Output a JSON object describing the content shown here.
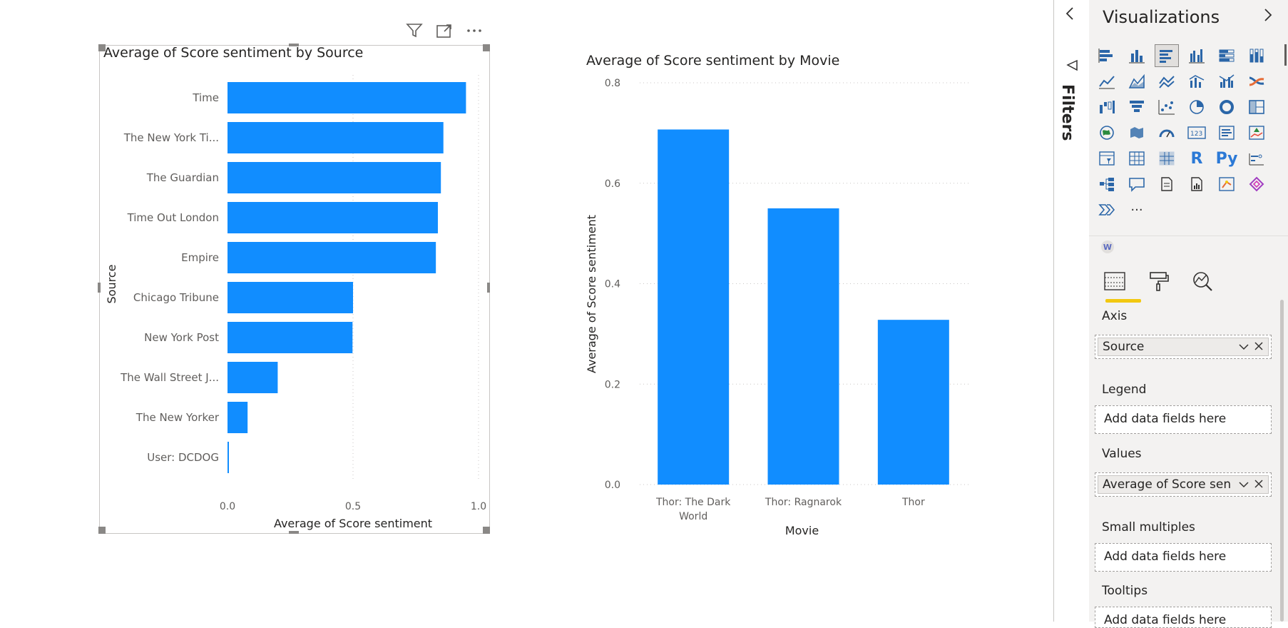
{
  "canvas": {
    "visual_header_icons": [
      "filter-icon",
      "focus-mode-icon",
      "more-options-icon"
    ],
    "bar_chart": {
      "title": "Average of Score sentiment by Source"
    },
    "column_chart": {
      "title": "Average of Score sentiment by Movie"
    }
  },
  "chart_data": [
    {
      "type": "bar",
      "orientation": "horizontal",
      "title": "Average of Score sentiment by Source",
      "xlabel": "Average of Score sentiment",
      "ylabel": "Source",
      "categories": [
        "Time",
        "The New York Ti...",
        "The Guardian",
        "Time Out London",
        "Empire",
        "Chicago Tribune",
        "New York Post",
        "The Wall Street J...",
        "The New Yorker",
        "User: DCDOG"
      ],
      "values": [
        0.95,
        0.86,
        0.85,
        0.838,
        0.83,
        0.5,
        0.498,
        0.2,
        0.08,
        0.005
      ],
      "xlim": [
        0,
        1.0
      ],
      "xticks": [
        "0.0",
        "0.5",
        "1.0"
      ],
      "grid": true,
      "color": "#118dff"
    },
    {
      "type": "bar",
      "orientation": "vertical",
      "title": "Average of Score sentiment by Movie",
      "xlabel": "Movie",
      "ylabel": "Average of Score sentiment",
      "categories": [
        "Thor: The Dark World",
        "Thor: Ragnarok",
        "Thor"
      ],
      "category_lines": [
        [
          "Thor: The Dark",
          "World"
        ],
        [
          "Thor: Ragnarok"
        ],
        [
          "Thor"
        ]
      ],
      "values": [
        0.707,
        0.55,
        0.328
      ],
      "ylim": [
        0,
        0.8
      ],
      "yticks": [
        "0.0",
        "0.2",
        "0.4",
        "0.6",
        "0.8"
      ],
      "grid": true,
      "color": "#118dff"
    }
  ],
  "filters": {
    "label": "Filters",
    "collapse_icon": "chevron-left-icon"
  },
  "visualizations": {
    "title": "Visualizations",
    "expand_icon": "chevron-right-icon",
    "r_label": "R",
    "py_label": "Py",
    "more_label": "···",
    "custom_visual_label": "W",
    "wells": {
      "axis": {
        "label": "Axis",
        "field": "Source"
      },
      "legend": {
        "label": "Legend",
        "placeholder": "Add data fields here"
      },
      "values": {
        "label": "Values",
        "field": "Average of Score sentiment"
      },
      "small_multiples": {
        "label": "Small multiples",
        "placeholder": "Add data fields here"
      },
      "tooltips": {
        "label": "Tooltips",
        "placeholder": "Add data fields here"
      }
    }
  }
}
